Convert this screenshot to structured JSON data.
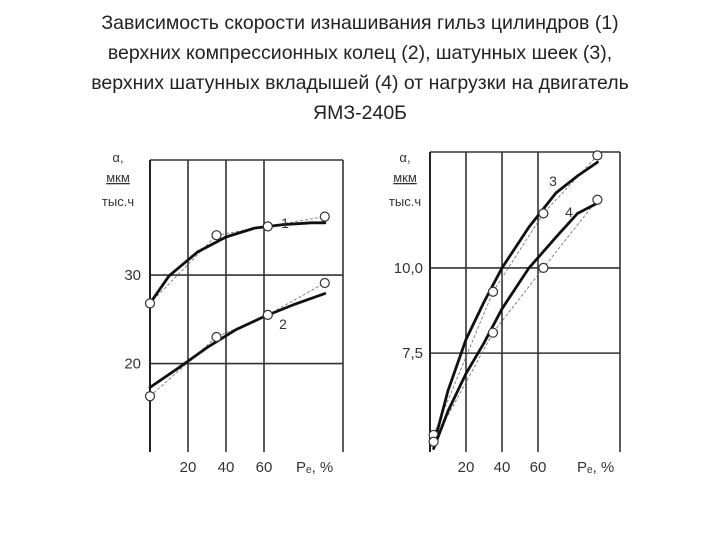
{
  "title_lines": [
    "Зависимость скорости изнашивания гильз цилиндров (1)",
    "верхних компрессионных колец (2), шатунных шеек (3),",
    "верхних шатунных вкладышей (4) от нагрузки на двигатель",
    "ЯМЗ-240Б"
  ],
  "chart_data": [
    {
      "type": "line",
      "y_label_lines": [
        "α,",
        "мкм",
        "тыс.ч"
      ],
      "x_label": "Pₑ, %",
      "xlim": [
        0,
        100
      ],
      "ylim": [
        10,
        43
      ],
      "x_ticks": [
        20,
        40,
        60
      ],
      "y_ticks": [
        20,
        30
      ],
      "y_tick_labels": [
        "20",
        "30"
      ],
      "grid": true,
      "series": [
        {
          "name": "1",
          "points": [
            [
              0,
              26.8
            ],
            [
              35,
              34.5
            ],
            [
              62,
              35.5
            ],
            [
              92,
              36.6
            ]
          ],
          "curve": [
            [
              0,
              26.8
            ],
            [
              10,
              29.9
            ],
            [
              25,
              32.6
            ],
            [
              40,
              34.3
            ],
            [
              55,
              35.3
            ],
            [
              70,
              35.7
            ],
            [
              85,
              35.9
            ],
            [
              92,
              35.9
            ]
          ]
        },
        {
          "name": "2",
          "points": [
            [
              0,
              16.3
            ],
            [
              35,
              23.0
            ],
            [
              62,
              25.5
            ],
            [
              92,
              29.1
            ]
          ],
          "curve": [
            [
              0,
              17.3
            ],
            [
              15,
              19.5
            ],
            [
              30,
              21.8
            ],
            [
              45,
              23.8
            ],
            [
              60,
              25.3
            ],
            [
              75,
              26.6
            ],
            [
              92,
              27.9
            ]
          ]
        }
      ]
    },
    {
      "type": "line",
      "y_label_lines": [
        "α,",
        "мкм",
        "тыс.ч"
      ],
      "x_label": "Pₑ, %",
      "xlim": [
        0,
        100
      ],
      "ylim": [
        4.6,
        13.4
      ],
      "x_ticks": [
        20,
        40,
        60
      ],
      "y_ticks": [
        7.5,
        10.0
      ],
      "y_tick_labels": [
        "7,5",
        "10,0"
      ],
      "grid": true,
      "series": [
        {
          "name": "3",
          "points": [
            [
              2,
              5.1
            ],
            [
              35,
              9.3
            ],
            [
              63,
              11.6
            ],
            [
              93,
              13.3
            ]
          ],
          "curve": [
            [
              2,
              4.8
            ],
            [
              10,
              6.4
            ],
            [
              20,
              7.9
            ],
            [
              30,
              9.0
            ],
            [
              40,
              10.0
            ],
            [
              55,
              11.2
            ],
            [
              70,
              12.2
            ],
            [
              82,
              12.7
            ],
            [
              93,
              13.1
            ]
          ]
        },
        {
          "name": "4",
          "points": [
            [
              2,
              4.9
            ],
            [
              35,
              8.1
            ],
            [
              63,
              10.0
            ],
            [
              93,
              12.0
            ]
          ],
          "curve": [
            [
              2,
              4.7
            ],
            [
              10,
              5.8
            ],
            [
              20,
              6.9
            ],
            [
              30,
              7.8
            ],
            [
              40,
              8.8
            ],
            [
              55,
              10.0
            ],
            [
              70,
              10.9
            ],
            [
              82,
              11.6
            ],
            [
              93,
              11.9
            ]
          ]
        }
      ]
    }
  ]
}
